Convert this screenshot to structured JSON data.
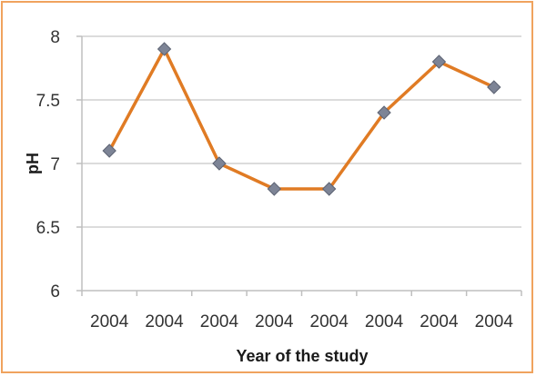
{
  "chart_data": {
    "type": "line",
    "title": "",
    "xlabel": "Year of the study",
    "ylabel": "pH",
    "categories": [
      "2004",
      "2004",
      "2004",
      "2004",
      "2004",
      "2004",
      "2004",
      "2004"
    ],
    "series": [
      {
        "values": [
          7.1,
          7.9,
          7.0,
          6.8,
          6.8,
          7.4,
          7.8,
          7.6
        ]
      }
    ],
    "ylim": [
      6,
      8
    ],
    "yticks": [
      "6",
      "6.5",
      "7",
      "7.5",
      "8"
    ],
    "grid": true,
    "legend": "none",
    "colors": {
      "line": "#e07b24",
      "marker": "#7d8496",
      "grid": "#d0d0d0",
      "border": "#f0a35e"
    }
  }
}
